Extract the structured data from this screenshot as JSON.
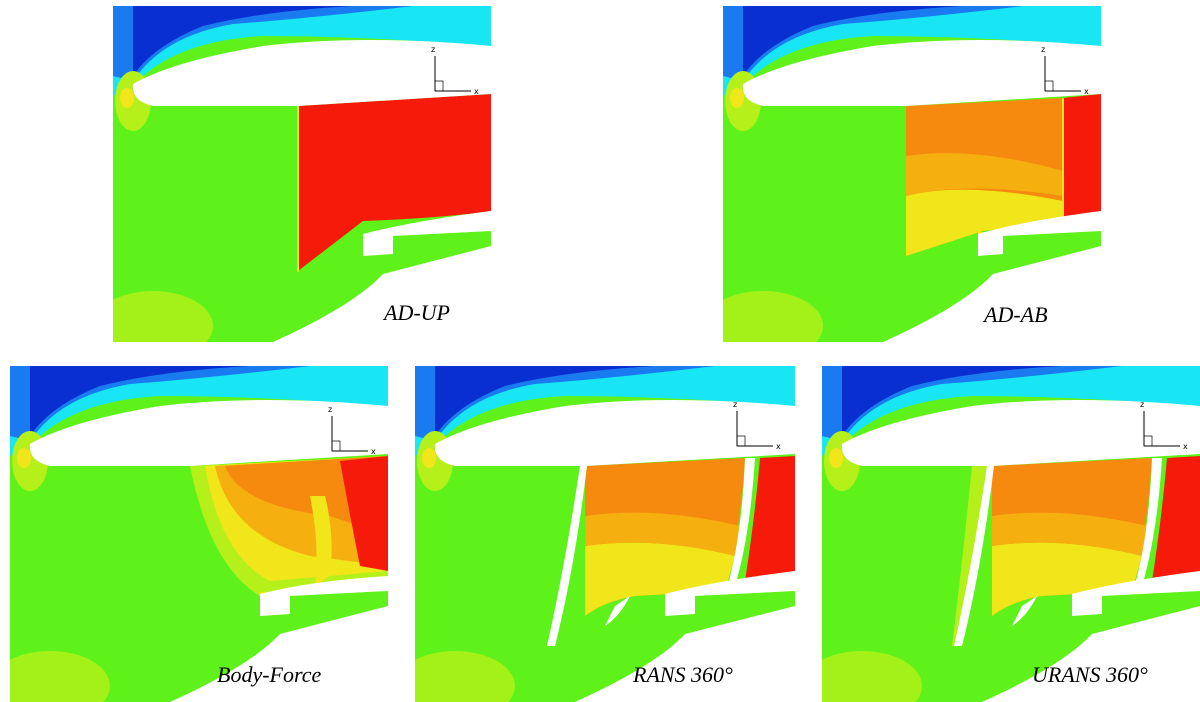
{
  "panels": [
    {
      "id": "ad-up",
      "caption": "AD-UP"
    },
    {
      "id": "ad-ab",
      "caption": "AD-AB"
    },
    {
      "id": "body-force",
      "caption": "Body-Force"
    },
    {
      "id": "rans-360",
      "caption": "RANS 360°"
    },
    {
      "id": "urans-360",
      "caption": "URANS 360°"
    }
  ],
  "axes": {
    "z_label": "z",
    "x_label": "x"
  },
  "colors": {
    "deep_blue": "#0a2fd0",
    "mid_blue": "#1a7af0",
    "cyan": "#19e6f5",
    "green": "#5ef21a",
    "yellow_green": "#b5f01a",
    "yellow": "#f0e61a",
    "orange": "#f58a0f",
    "red": "#f51a0a"
  }
}
